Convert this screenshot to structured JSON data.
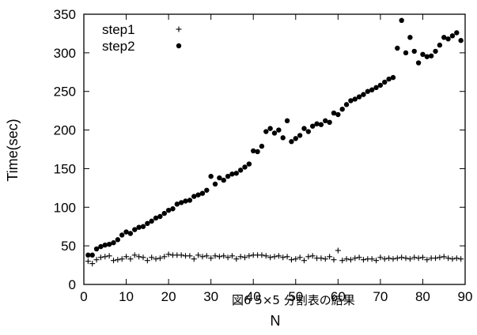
{
  "chart_data": {
    "type": "scatter",
    "xlabel": "N",
    "ylabel": "Time(sec)",
    "caption": "図6 5×5 分割表の結果",
    "xlim": [
      0,
      90
    ],
    "ylim": [
      0,
      350
    ],
    "x_ticks": [
      "0",
      "10",
      "20",
      "30",
      "40",
      "50",
      "60",
      "70",
      "80",
      "90"
    ],
    "y_ticks": [
      "0",
      "50",
      "100",
      "150",
      "200",
      "250",
      "300",
      "350"
    ],
    "grid": false,
    "legend_position": "top-left",
    "series": [
      {
        "name": "step1",
        "marker": "plus",
        "color": "#000000",
        "x": [
          1,
          2,
          3,
          4,
          5,
          6,
          7,
          8,
          9,
          10,
          11,
          12,
          13,
          14,
          15,
          16,
          17,
          18,
          19,
          20,
          21,
          22,
          23,
          24,
          25,
          26,
          27,
          28,
          29,
          30,
          31,
          32,
          33,
          34,
          35,
          36,
          37,
          38,
          39,
          40,
          41,
          42,
          43,
          44,
          45,
          46,
          47,
          48,
          49,
          50,
          51,
          52,
          53,
          54,
          55,
          56,
          57,
          58,
          59,
          60,
          61,
          62,
          63,
          64,
          65,
          66,
          67,
          68,
          69,
          70,
          71,
          72,
          73,
          74,
          75,
          76,
          77,
          78,
          79,
          80,
          81,
          82,
          83,
          84,
          85,
          86,
          87,
          88,
          89
        ],
        "y": [
          30,
          27,
          32,
          35,
          36,
          37,
          31,
          32,
          33,
          36,
          33,
          38,
          36,
          35,
          31,
          35,
          33,
          34,
          36,
          39,
          38,
          38,
          38,
          37,
          37,
          33,
          38,
          36,
          37,
          34,
          37,
          36,
          37,
          35,
          37,
          33,
          36,
          35,
          37,
          38,
          38,
          38,
          37,
          35,
          36,
          37,
          35,
          36,
          32,
          33,
          35,
          31,
          36,
          37,
          34,
          34,
          33,
          36,
          32,
          44,
          31,
          33,
          32,
          34,
          35,
          32,
          33,
          33,
          31,
          35,
          33,
          34,
          33,
          34,
          35,
          34,
          33,
          35,
          34,
          35,
          32,
          34,
          34,
          35,
          36,
          34,
          33,
          34,
          33
        ]
      },
      {
        "name": "step2",
        "marker": "dot",
        "color": "#000000",
        "x": [
          1,
          2,
          3,
          4,
          5,
          6,
          7,
          8,
          9,
          10,
          11,
          12,
          13,
          14,
          15,
          16,
          17,
          18,
          19,
          20,
          21,
          22,
          23,
          24,
          25,
          26,
          27,
          28,
          29,
          30,
          31,
          32,
          33,
          34,
          35,
          36,
          37,
          38,
          39,
          40,
          41,
          42,
          43,
          44,
          45,
          46,
          47,
          48,
          49,
          50,
          51,
          52,
          53,
          54,
          55,
          56,
          57,
          58,
          59,
          60,
          61,
          62,
          63,
          64,
          65,
          66,
          67,
          68,
          69,
          70,
          71,
          72,
          73,
          74,
          75,
          76,
          77,
          78,
          79,
          80,
          81,
          82,
          83,
          84,
          85,
          86,
          87,
          88,
          89
        ],
        "y": [
          38,
          38,
          46,
          49,
          51,
          52,
          54,
          58,
          64,
          68,
          66,
          71,
          74,
          75,
          79,
          82,
          86,
          88,
          92,
          96,
          98,
          104,
          106,
          108,
          109,
          114,
          116,
          118,
          122,
          140,
          130,
          138,
          135,
          140,
          143,
          144,
          148,
          152,
          156,
          173,
          172,
          179,
          198,
          202,
          196,
          200,
          190,
          212,
          185,
          189,
          193,
          202,
          198,
          205,
          208,
          207,
          212,
          210,
          222,
          220,
          227,
          233,
          238,
          240,
          243,
          246,
          250,
          252,
          255,
          258,
          262,
          266,
          268,
          306,
          342,
          300,
          320,
          302,
          287,
          298,
          295,
          296,
          302,
          310,
          320,
          318,
          322,
          326,
          316
        ]
      }
    ]
  }
}
